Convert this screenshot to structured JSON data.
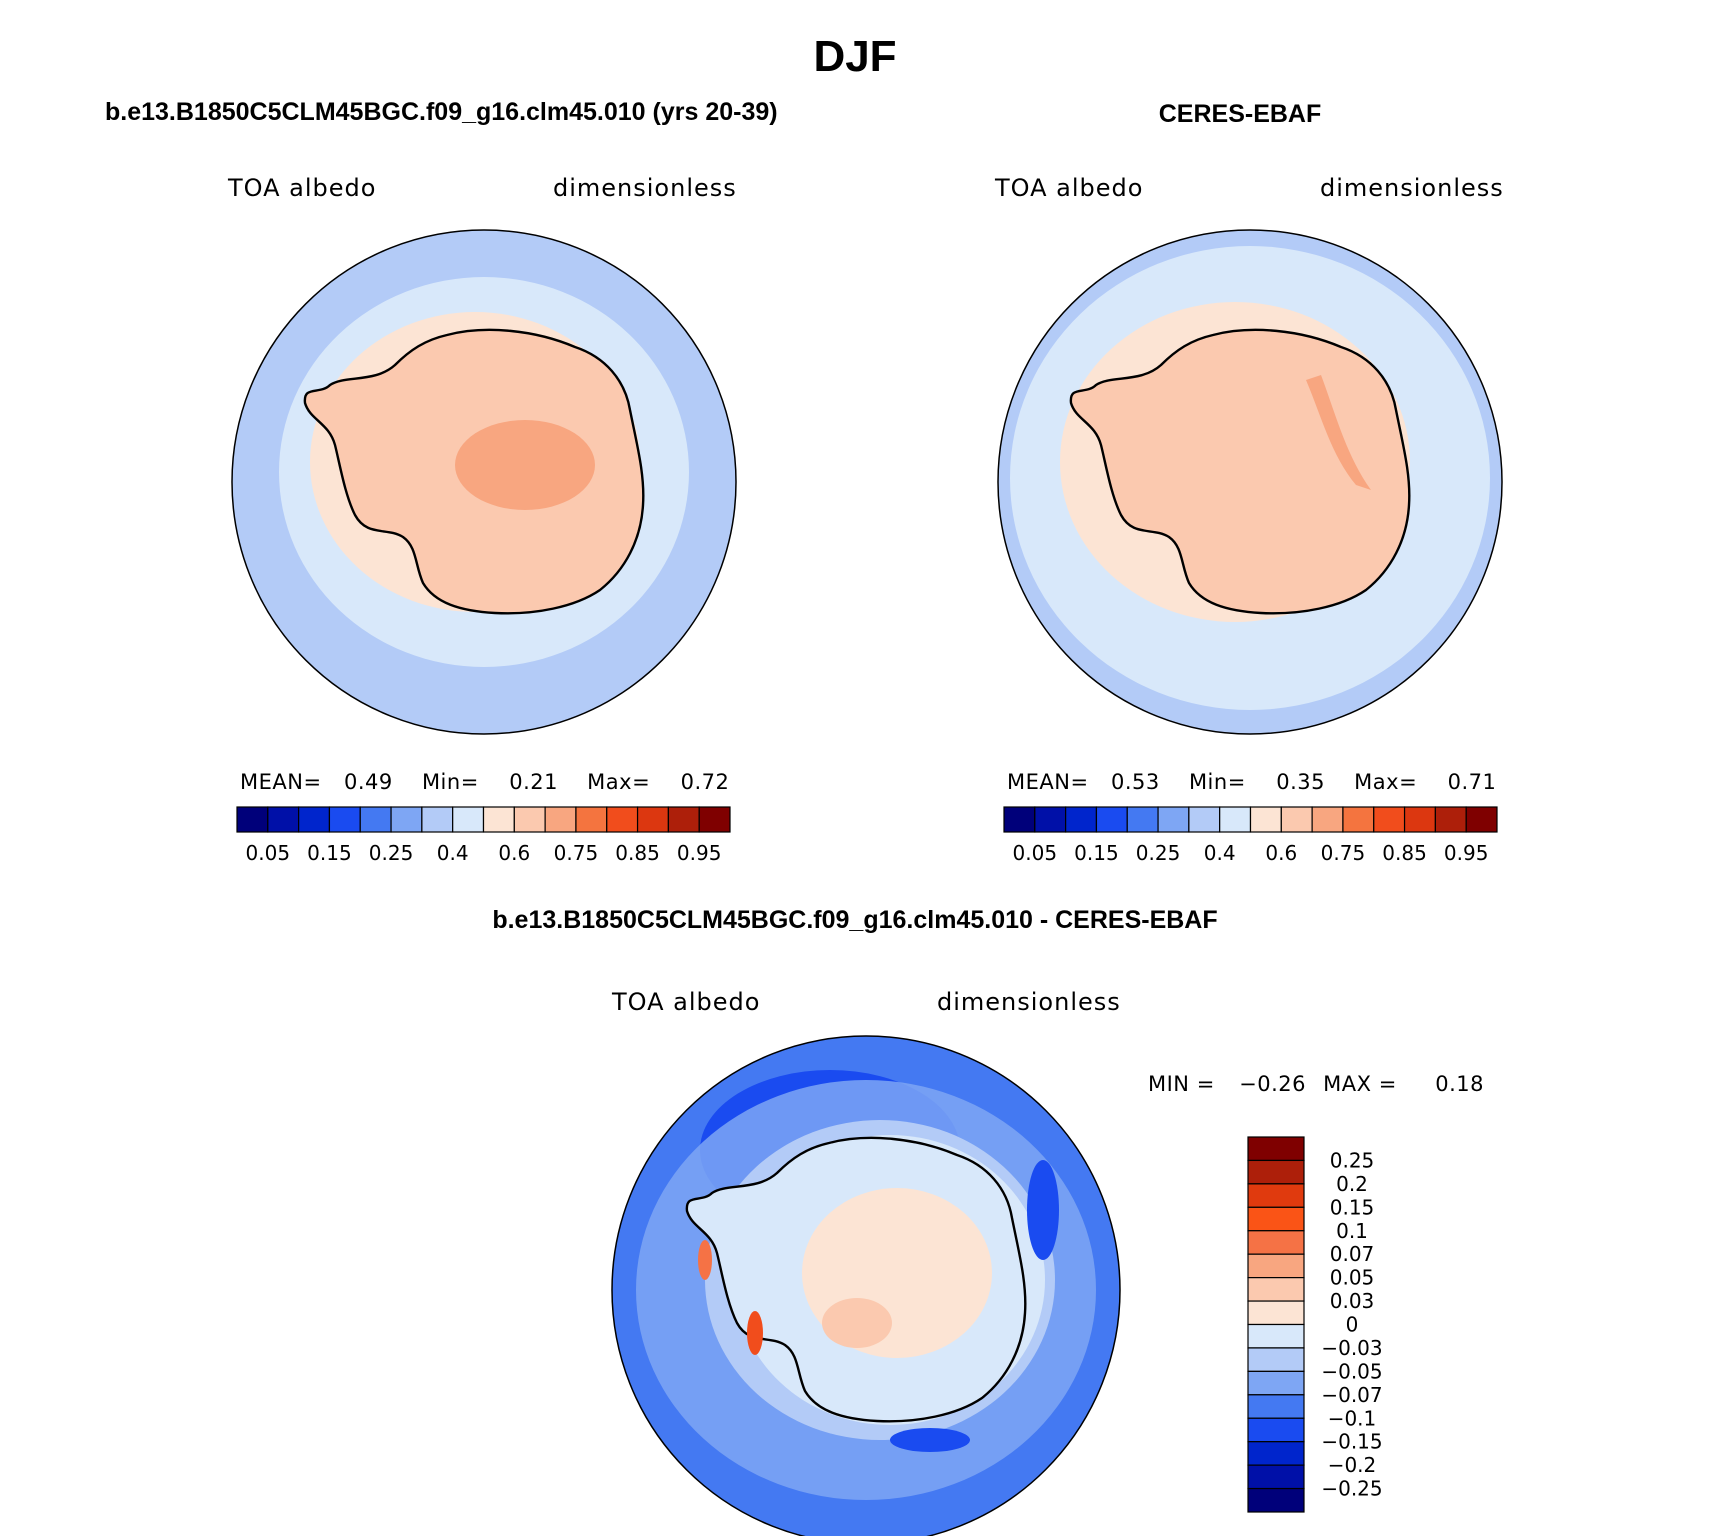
{
  "figure": {
    "title": "DJF"
  },
  "panels": {
    "model": {
      "title": "b.e13.B1850C5CLM45BGC.f09_g16.clm45.010 (yrs 20-39)",
      "variable": "TOA albedo",
      "units": "dimensionless",
      "stats": {
        "mean_label": "MEAN=",
        "mean": "0.49",
        "min_label": "Min=",
        "min": "0.21",
        "max_label": "Max=",
        "max": "0.72"
      }
    },
    "obs": {
      "title": "CERES-EBAF",
      "variable": "TOA albedo",
      "units": "dimensionless",
      "stats": {
        "mean_label": "MEAN=",
        "mean": "0.53",
        "min_label": "Min=",
        "min": "0.35",
        "max_label": "Max=",
        "max": "0.71"
      }
    },
    "diff": {
      "title": "b.e13.B1850C5CLM45BGC.f09_g16.clm45.010 - CERES-EBAF",
      "variable": "TOA albedo",
      "units": "dimensionless",
      "stats": {
        "min_label": "MIN =",
        "min": "−0.26",
        "max_label": "MAX =",
        "max": "0.18"
      }
    }
  },
  "colorbars": {
    "abs": {
      "colors": [
        "#00007a",
        "#0010a8",
        "#0025cc",
        "#1a4bf0",
        "#4479f2",
        "#7ea6f4",
        "#b3cbf7",
        "#d8e8fa",
        "#fce4d4",
        "#fbc9af",
        "#f8a680",
        "#f4743f",
        "#f14d1c",
        "#dc3710",
        "#ad1f0a",
        "#7f0000"
      ],
      "labels": [
        "0.05",
        "0.15",
        "0.25",
        "0.4",
        "0.6",
        "0.75",
        "0.85",
        "0.95"
      ]
    },
    "diff": {
      "colors": [
        "#7f0000",
        "#ad1f0a",
        "#e03a0e",
        "#fa5416",
        "#f57245",
        "#f8a680",
        "#fbc9af",
        "#fce4d4",
        "#d8e8fa",
        "#b3cbf7",
        "#7ea6f4",
        "#4479f2",
        "#1a4bf0",
        "#0025cc",
        "#0010a8",
        "#00007a"
      ],
      "labels": [
        "0.25",
        "0.2",
        "0.15",
        "0.1",
        "0.07",
        "0.05",
        "0.03",
        "0",
        "−0.03",
        "−0.05",
        "−0.07",
        "−0.1",
        "−0.15",
        "−0.2",
        "−0.25"
      ]
    }
  },
  "map_colors": {
    "ocean_outer": "#b3cbf7",
    "ocean_inner": "#d8e8fa",
    "ice_edge": "#fce4d4",
    "land": "#fbc9af",
    "land_high": "#f8a680",
    "diff_outer": "#4479f2",
    "diff_mid": "#7ea6f4",
    "diff_dark": "#1a4bf0",
    "diff_land": "#fce4d4",
    "coast": "#000000"
  }
}
